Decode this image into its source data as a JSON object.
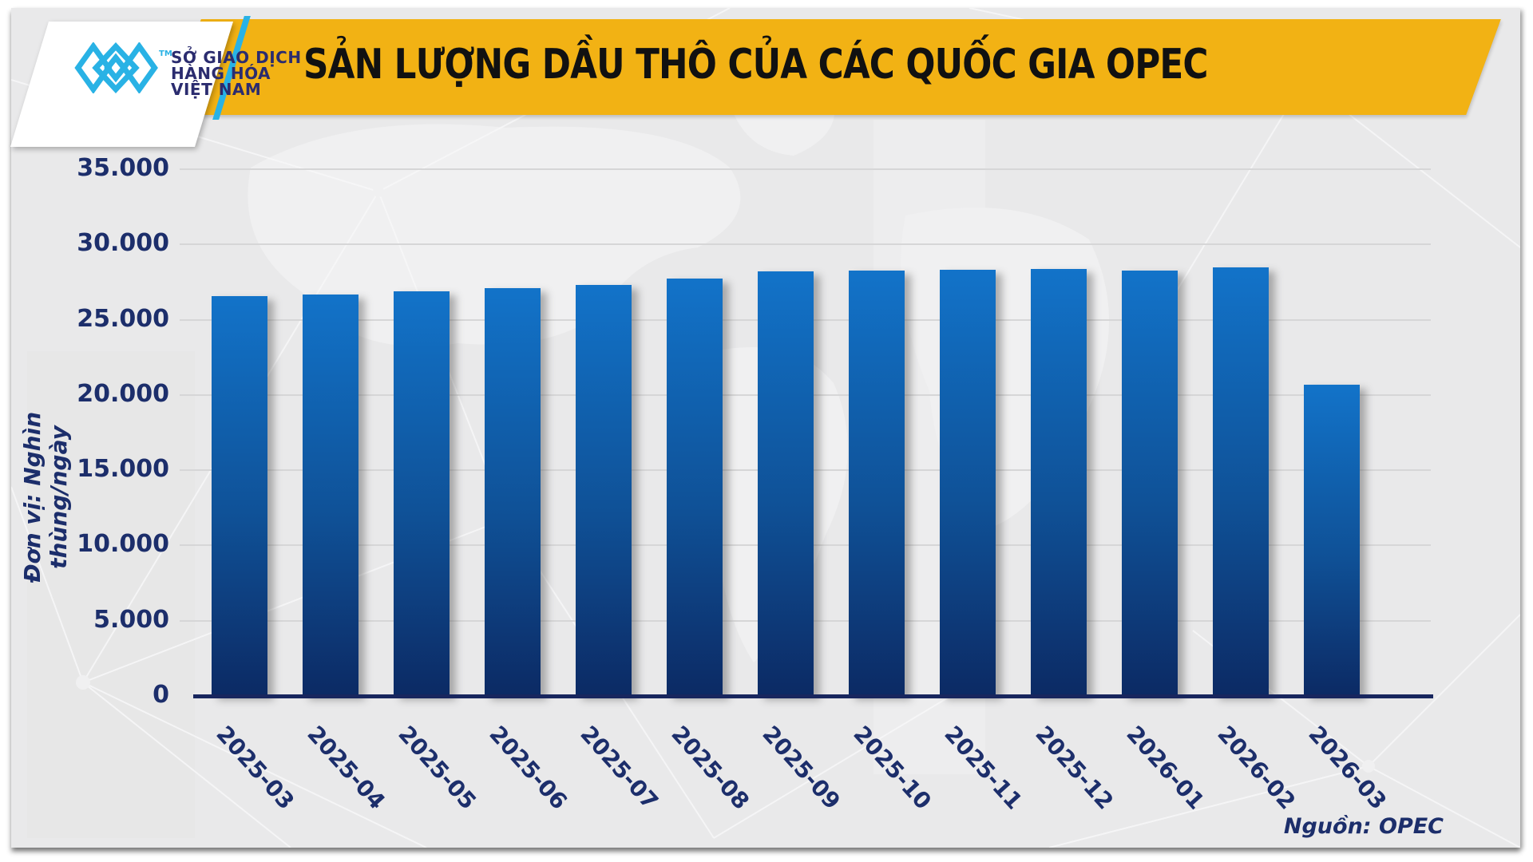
{
  "header": {
    "title": "SẢN LƯỢNG DẦU THÔ CỦA CÁC QUỐC GIA OPEC",
    "logo": {
      "lines": [
        "SỞ GIAO DỊCH",
        "HÀNG HÓA",
        "VIỆT NAM"
      ],
      "trademark": "TM"
    }
  },
  "chart_data": {
    "type": "bar",
    "title": "SẢN LƯỢNG DẦU THÔ CỦA CÁC QUỐC GIA OPEC",
    "ylabel": "Đơn vị: Nghìn thùng/ngày",
    "xlabel": "",
    "categories": [
      "2025-03",
      "2025-04",
      "2025-05",
      "2025-06",
      "2025-07",
      "2025-08",
      "2025-09",
      "2025-10",
      "2025-11",
      "2025-12",
      "2026-01",
      "2026-02",
      "2026-03"
    ],
    "values": [
      26550,
      26650,
      26900,
      27100,
      27300,
      27750,
      28200,
      28250,
      28300,
      28350,
      28250,
      28500,
      20700
    ],
    "ylim": [
      0,
      35000
    ],
    "yticks": [
      0,
      5000,
      10000,
      15000,
      20000,
      25000,
      30000,
      35000
    ],
    "ytick_labels": [
      "0",
      "5.000",
      "10.000",
      "15.000",
      "20.000",
      "25.000",
      "30.000",
      "35.000"
    ],
    "grid": true,
    "legend": null,
    "source": "Nguồn: OPEC"
  },
  "colors": {
    "banner_yellow": "#F2B214",
    "bar_top": "#1273C9",
    "bar_bottom": "#0C2A64",
    "navy_text": "#1C2E6B",
    "logo_navy": "#2B2C6F",
    "logo_cyan": "#29B2E5",
    "panel_bg": "#E9E9EA",
    "gridline": "#D6D6D7",
    "axis_line": "#18265E",
    "title_text": "#111111"
  }
}
